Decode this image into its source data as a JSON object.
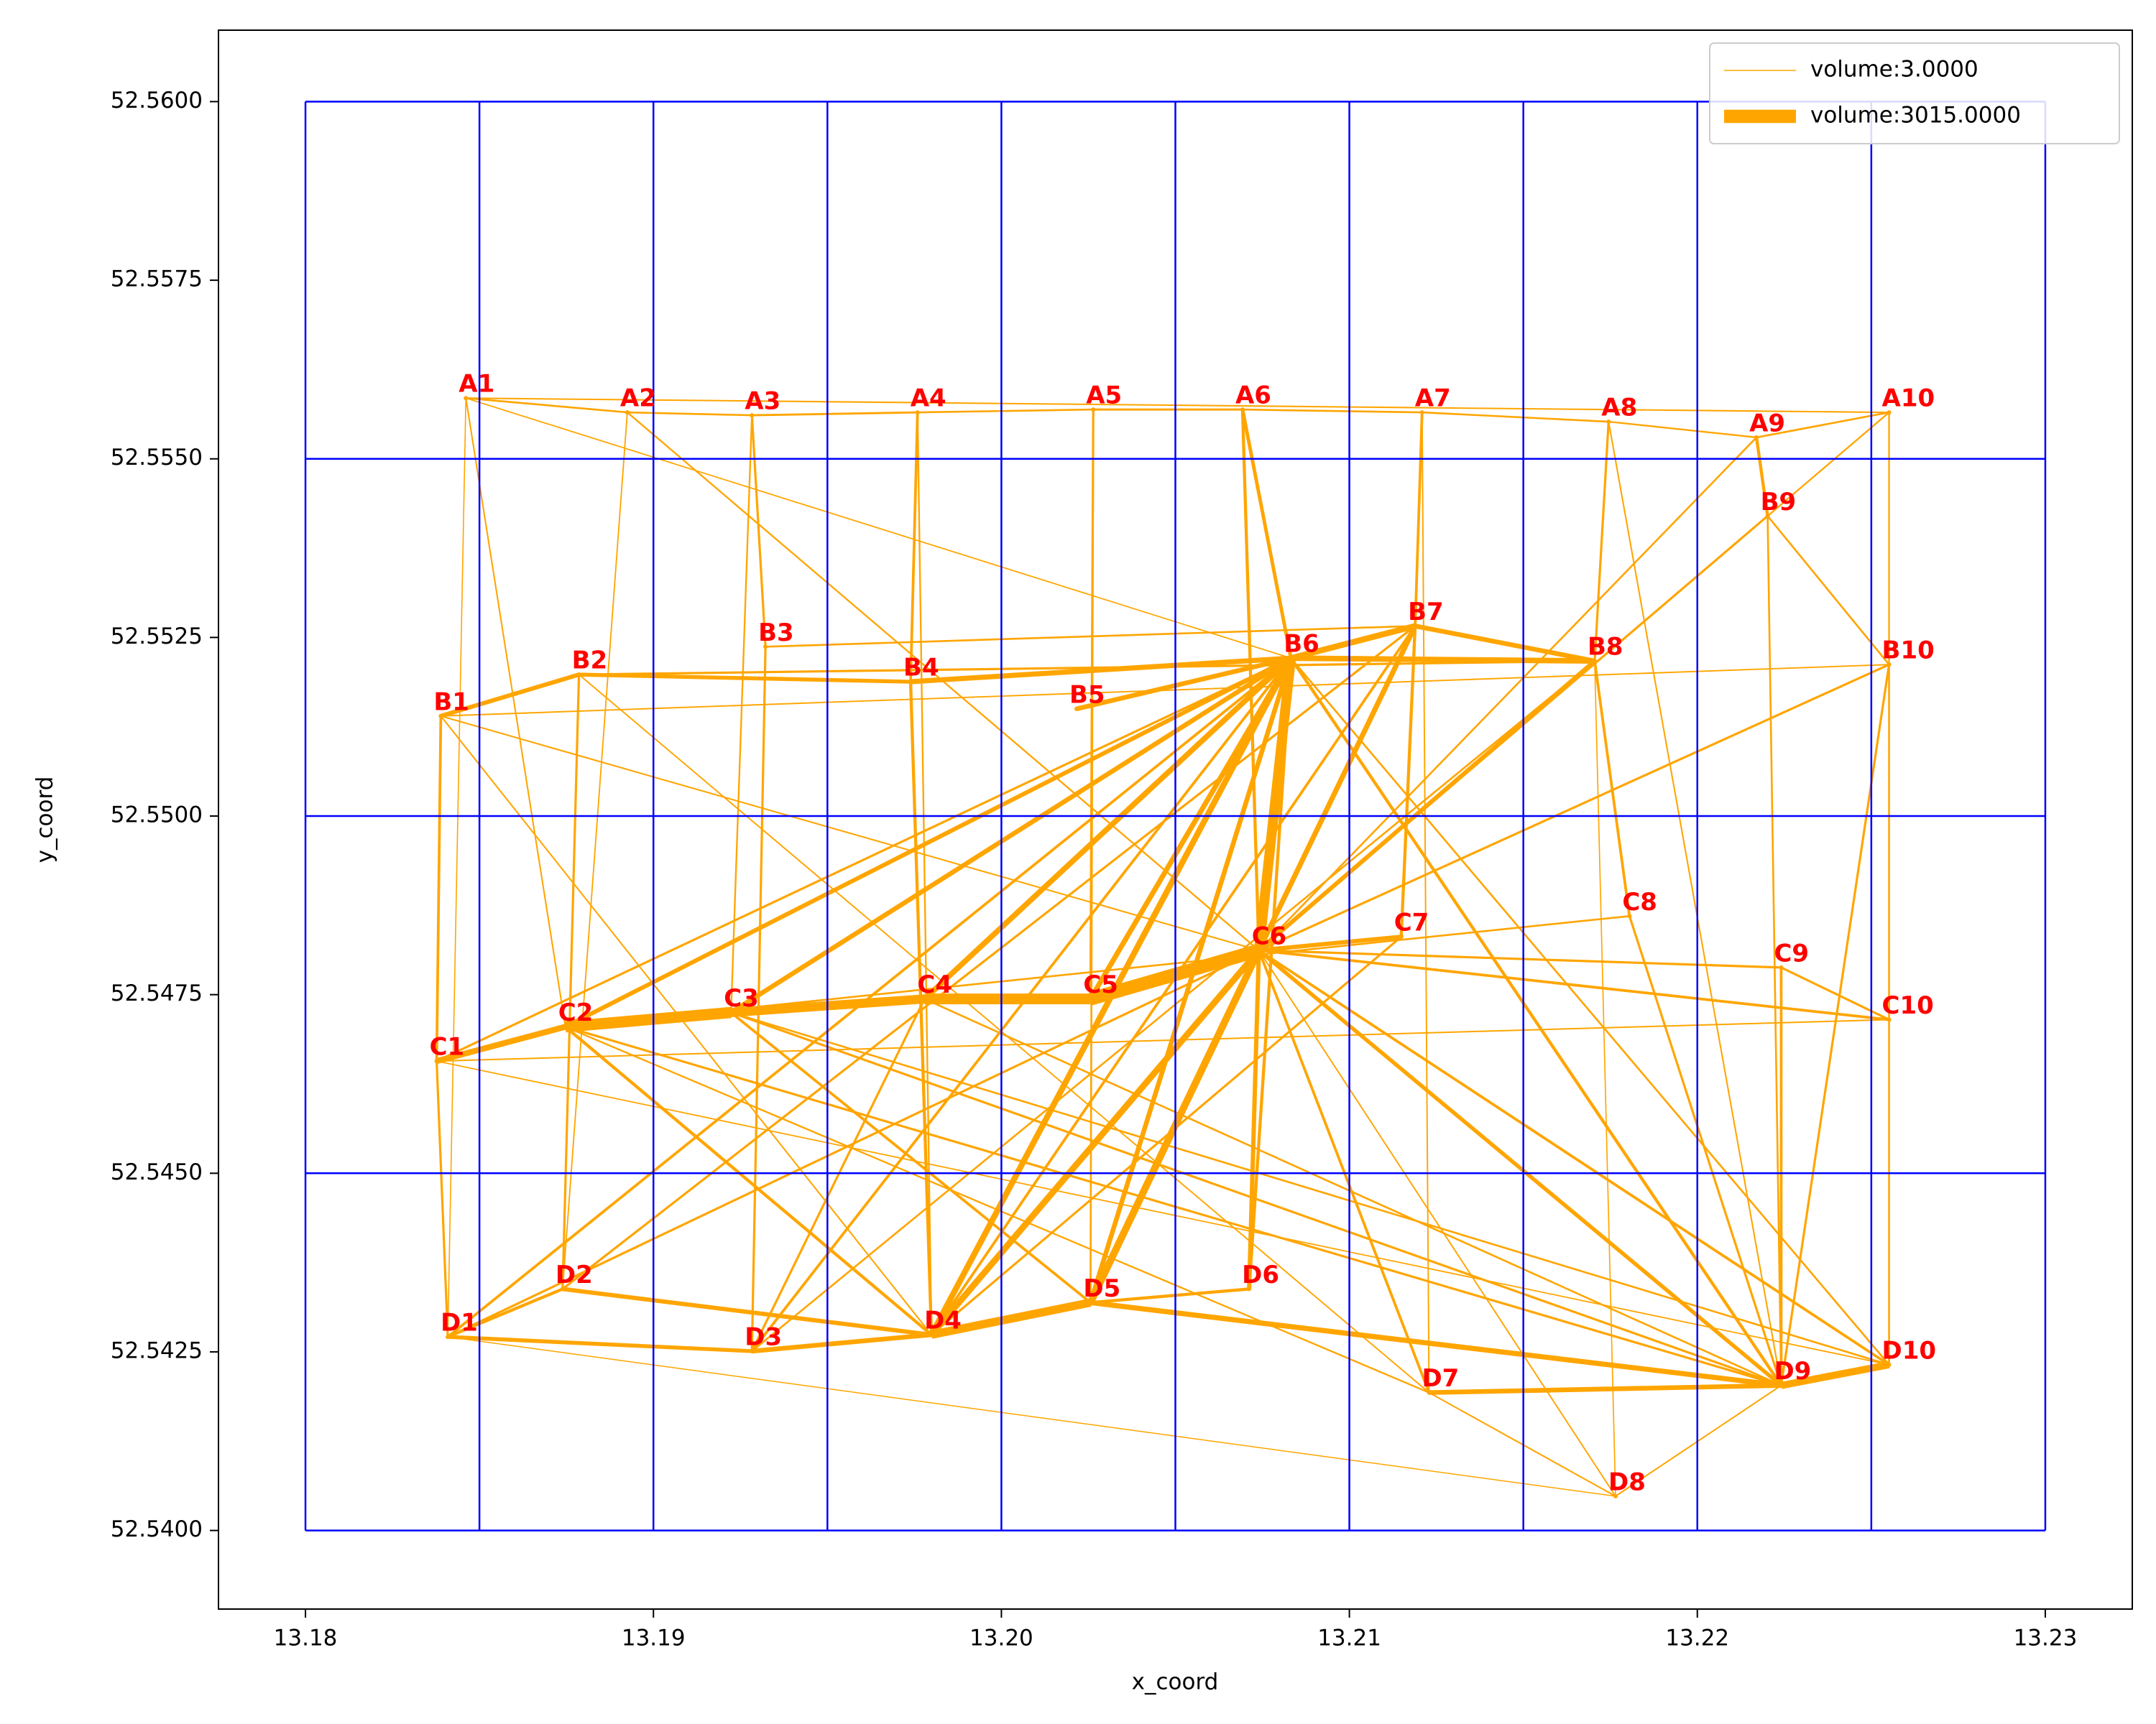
{
  "chart_data": {
    "type": "network",
    "xlabel": "x_coord",
    "ylabel": "y_coord",
    "xlim": [
      13.1775,
      13.2325
    ],
    "ylim": [
      52.5389,
      52.561
    ],
    "xticks": [
      13.18,
      13.19,
      {
        "value": 13.2,
        "label": "13.20"
      },
      13.21,
      13.22,
      13.23
    ],
    "yticks": [
      {
        "value": 52.54,
        "label": "52.5400"
      },
      {
        "value": 52.5425,
        "label": "52.5425"
      },
      {
        "value": 52.545,
        "label": "52.5450"
      },
      {
        "value": 52.5475,
        "label": "52.5475"
      },
      {
        "value": 52.55,
        "label": "52.5500"
      },
      {
        "value": 52.5525,
        "label": "52.5525"
      },
      {
        "value": 52.555,
        "label": "52.5550"
      },
      {
        "value": 52.5575,
        "label": "52.5575"
      },
      {
        "value": 52.56,
        "label": "52.5600"
      }
    ],
    "cells": {
      "color": "#0000ff",
      "x": [
        13.18,
        13.185,
        13.19,
        13.195,
        13.2,
        13.205,
        13.21,
        13.215,
        13.22,
        13.225,
        13.23
      ],
      "y": [
        52.54,
        52.545,
        52.55,
        52.555,
        52.56
      ]
    },
    "edge_color": "#ffa500",
    "label_color": "#ff0000",
    "legend": {
      "position": "upper right",
      "entries": [
        "volume:3.0000",
        "volume:3015.0000"
      ]
    },
    "nodes": [
      {
        "name": "A1",
        "x": 13.18461,
        "y": 52.55585
      },
      {
        "name": "A2",
        "x": 13.18925,
        "y": 52.55565
      },
      {
        "name": "A3",
        "x": 13.19283,
        "y": 52.55561
      },
      {
        "name": "A4",
        "x": 13.19759,
        "y": 52.55565
      },
      {
        "name": "A5",
        "x": 13.20264,
        "y": 52.55569
      },
      {
        "name": "A6",
        "x": 13.20693,
        "y": 52.55569
      },
      {
        "name": "A7",
        "x": 13.21209,
        "y": 52.55565
      },
      {
        "name": "A8",
        "x": 13.21745,
        "y": 52.55552
      },
      {
        "name": "A9",
        "x": 13.2217,
        "y": 52.5553
      },
      {
        "name": "A10",
        "x": 13.22551,
        "y": 52.55565
      },
      {
        "name": "B1",
        "x": 13.18389,
        "y": 52.5514
      },
      {
        "name": "B2",
        "x": 13.18786,
        "y": 52.55198
      },
      {
        "name": "B3",
        "x": 13.19322,
        "y": 52.55237
      },
      {
        "name": "B4",
        "x": 13.19739,
        "y": 52.55188
      },
      {
        "name": "B5",
        "x": 13.20216,
        "y": 52.5515
      },
      {
        "name": "B6",
        "x": 13.20832,
        "y": 52.55221
      },
      {
        "name": "B7",
        "x": 13.21189,
        "y": 52.55266
      },
      {
        "name": "B8",
        "x": 13.21705,
        "y": 52.55217
      },
      {
        "name": "B9",
        "x": 13.22202,
        "y": 52.5542
      },
      {
        "name": "B10",
        "x": 13.22551,
        "y": 52.55212
      },
      {
        "name": "C1",
        "x": 13.18377,
        "y": 52.54657
      },
      {
        "name": "C2",
        "x": 13.18747,
        "y": 52.54705
      },
      {
        "name": "C3",
        "x": 13.19223,
        "y": 52.54725
      },
      {
        "name": "C4",
        "x": 13.19779,
        "y": 52.54744
      },
      {
        "name": "C5",
        "x": 13.20256,
        "y": 52.54744
      },
      {
        "name": "C6",
        "x": 13.2074,
        "y": 52.54812
      },
      {
        "name": "C7",
        "x": 13.21149,
        "y": 52.54831
      },
      {
        "name": "C8",
        "x": 13.21805,
        "y": 52.5486
      },
      {
        "name": "C9",
        "x": 13.22241,
        "y": 52.54788
      },
      {
        "name": "C10",
        "x": 13.22551,
        "y": 52.54715
      },
      {
        "name": "D1",
        "x": 13.18409,
        "y": 52.54271
      },
      {
        "name": "D2",
        "x": 13.18739,
        "y": 52.54338
      },
      {
        "name": "D3",
        "x": 13.19283,
        "y": 52.54251
      },
      {
        "name": "D4",
        "x": 13.19799,
        "y": 52.54274
      },
      {
        "name": "D5",
        "x": 13.20256,
        "y": 52.54319
      },
      {
        "name": "D6",
        "x": 13.20712,
        "y": 52.54338
      },
      {
        "name": "D7",
        "x": 13.21229,
        "y": 52.54193
      },
      {
        "name": "D8",
        "x": 13.21765,
        "y": 52.54048
      },
      {
        "name": "D9",
        "x": 13.22241,
        "y": 52.54203
      },
      {
        "name": "D10",
        "x": 13.22551,
        "y": 52.54232
      }
    ],
    "edges": [
      [
        "C2",
        "C3",
        2500
      ],
      [
        "C3",
        "C4",
        2000
      ],
      [
        "C4",
        "C5",
        2400
      ],
      [
        "C5",
        "C6",
        3015
      ],
      [
        "C1",
        "C2",
        1200
      ],
      [
        "C6",
        "B6",
        2200
      ],
      [
        "C6",
        "D5",
        1500
      ],
      [
        "C6",
        "D4",
        1300
      ],
      [
        "D4",
        "D5",
        1800
      ],
      [
        "D3",
        "D4",
        900
      ],
      [
        "D1",
        "D3",
        700
      ],
      [
        "D2",
        "D4",
        800
      ],
      [
        "D9",
        "D10",
        1500
      ],
      [
        "D7",
        "D9",
        900
      ],
      [
        "D5",
        "D9",
        1000
      ],
      [
        "B6",
        "B7",
        1200
      ],
      [
        "B7",
        "B8",
        900
      ],
      [
        "B8",
        "B6",
        1100
      ],
      [
        "B2",
        "B1",
        800
      ],
      [
        "B2",
        "B4",
        700
      ],
      [
        "B4",
        "B6",
        1000
      ],
      [
        "B5",
        "B6",
        900
      ],
      [
        "C6",
        "C7",
        800
      ],
      [
        "C6",
        "B7",
        1000
      ],
      [
        "C3",
        "B6",
        900
      ],
      [
        "C2",
        "B6",
        800
      ],
      [
        "C4",
        "B6",
        1100
      ],
      [
        "C5",
        "B6",
        1000
      ],
      [
        "D4",
        "B6",
        1200
      ],
      [
        "D5",
        "B6",
        900
      ],
      [
        "C6",
        "D9",
        700
      ],
      [
        "C6",
        "B8",
        800
      ],
      [
        "C1",
        "B1",
        400
      ],
      [
        "C1",
        "D1",
        300
      ],
      [
        "D1",
        "D2",
        500
      ],
      [
        "A1",
        "A2",
        200
      ],
      [
        "A2",
        "A3",
        200
      ],
      [
        "A3",
        "A4",
        250
      ],
      [
        "A4",
        "A5",
        200
      ],
      [
        "A5",
        "A6",
        250
      ],
      [
        "A6",
        "A7",
        200
      ],
      [
        "A7",
        "A8",
        200
      ],
      [
        "A8",
        "A9",
        150
      ],
      [
        "A9",
        "A10",
        200
      ],
      [
        "A1",
        "A10",
        100
      ],
      [
        "A6",
        "B6",
        600
      ],
      [
        "A6",
        "C6",
        500
      ],
      [
        "A4",
        "B4",
        400
      ],
      [
        "A3",
        "B3",
        300
      ],
      [
        "A7",
        "B7",
        400
      ],
      [
        "A8",
        "B8",
        300
      ],
      [
        "A9",
        "B9",
        500
      ],
      [
        "B9",
        "B10",
        200
      ],
      [
        "B10",
        "C10",
        200
      ],
      [
        "C10",
        "D10",
        200
      ],
      [
        "C10",
        "C9",
        300
      ],
      [
        "C9",
        "D9",
        400
      ],
      [
        "C8",
        "D9",
        300
      ],
      [
        "C8",
        "B8",
        400
      ],
      [
        "C7",
        "B7",
        500
      ],
      [
        "D8",
        "D9",
        100
      ],
      [
        "D8",
        "D7",
        100
      ],
      [
        "D8",
        "D1",
        3
      ],
      [
        "D8",
        "C6",
        80
      ],
      [
        "D8",
        "B8",
        30
      ],
      [
        "D7",
        "C6",
        400
      ],
      [
        "D6",
        "C6",
        800
      ],
      [
        "D6",
        "B6",
        500
      ],
      [
        "D6",
        "D5",
        500
      ],
      [
        "D1",
        "B6",
        400
      ],
      [
        "D1",
        "C6",
        300
      ],
      [
        "D2",
        "B7",
        300
      ],
      [
        "D3",
        "B6",
        400
      ],
      [
        "C1",
        "B6",
        300
      ],
      [
        "C1",
        "C10",
        100
      ],
      [
        "C1",
        "D10",
        50
      ],
      [
        "B1",
        "B10",
        80
      ],
      [
        "B2",
        "B8",
        300
      ],
      [
        "B3",
        "B7",
        200
      ],
      [
        "A1",
        "D1",
        20
      ],
      [
        "A1",
        "C2",
        100
      ],
      [
        "A1",
        "B6",
        50
      ],
      [
        "A2",
        "D2",
        60
      ],
      [
        "A2",
        "C6",
        150
      ],
      [
        "A5",
        "C5",
        300
      ],
      [
        "A5",
        "D5",
        200
      ],
      [
        "A10",
        "B10",
        150
      ],
      [
        "A10",
        "C10",
        60
      ],
      [
        "A10",
        "C6",
        150
      ],
      [
        "A9",
        "C6",
        200
      ],
      [
        "B9",
        "C6",
        300
      ],
      [
        "B9",
        "D9",
        200
      ],
      [
        "B10",
        "D9",
        300
      ],
      [
        "B10",
        "C6",
        300
      ],
      [
        "C10",
        "C6",
        400
      ],
      [
        "C9",
        "C6",
        300
      ],
      [
        "D10",
        "C6",
        400
      ],
      [
        "D10",
        "B6",
        200
      ],
      [
        "D9",
        "B6",
        500
      ],
      [
        "D9",
        "C2",
        300
      ],
      [
        "D10",
        "C3",
        200
      ],
      [
        "D7",
        "C2",
        150
      ],
      [
        "D7",
        "B2",
        80
      ],
      [
        "D3",
        "B8",
        200
      ],
      [
        "D4",
        "B7",
        400
      ],
      [
        "D5",
        "B7",
        400
      ],
      [
        "C3",
        "D9",
        300
      ],
      [
        "C4",
        "D9",
        200
      ],
      [
        "B4",
        "D4",
        500
      ],
      [
        "B3",
        "D3",
        300
      ],
      [
        "B2",
        "D2",
        300
      ],
      [
        "C2",
        "D4",
        500
      ],
      [
        "C3",
        "D5",
        400
      ],
      [
        "C4",
        "D3",
        300
      ],
      [
        "B1",
        "C6",
        100
      ],
      [
        "B1",
        "D4",
        100
      ],
      [
        "C7",
        "D4",
        300
      ],
      [
        "C8",
        "C2",
        200
      ],
      [
        "A3",
        "C3",
        150
      ],
      [
        "A4",
        "D4",
        150
      ],
      [
        "A7",
        "D7",
        80
      ],
      [
        "A8",
        "D9",
        100
      ]
    ]
  }
}
